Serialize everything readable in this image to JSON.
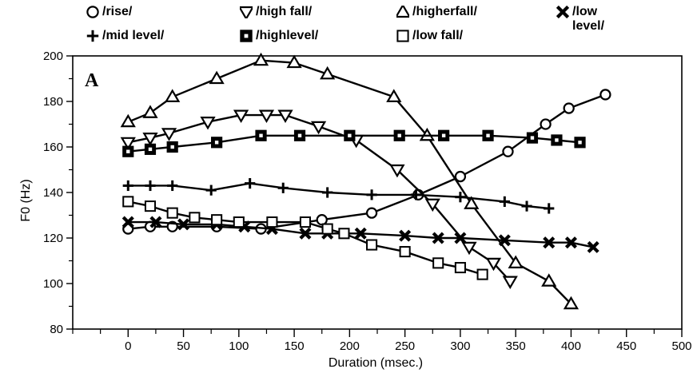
{
  "chart_data": {
    "type": "line",
    "panel_label": "A",
    "xlabel": "Duration (msec.)",
    "ylabel": "F0 (Hz)",
    "xlim": [
      -50,
      500
    ],
    "ylim": [
      80,
      200
    ],
    "x_ticks": [
      0,
      50,
      100,
      150,
      200,
      250,
      300,
      350,
      400,
      450,
      500
    ],
    "y_ticks": [
      80,
      100,
      120,
      140,
      160,
      180,
      200
    ],
    "grid": false,
    "legend_position": "top",
    "series": [
      {
        "name": "/rise/",
        "marker": "circle",
        "x": [
          0,
          20,
          40,
          80,
          120,
          175,
          220,
          262,
          300,
          343,
          377,
          398,
          431
        ],
        "y": [
          124,
          125,
          125,
          125,
          124,
          128,
          131,
          139,
          147,
          158,
          170,
          177,
          183
        ]
      },
      {
        "name": "/high fall/",
        "marker": "triangle-down",
        "x": [
          0,
          20,
          37,
          72,
          102,
          125,
          142,
          172,
          206,
          243,
          275,
          308,
          330,
          345
        ],
        "y": [
          162,
          164,
          166,
          171,
          174,
          174,
          174,
          169,
          163,
          150,
          135,
          116,
          109,
          101
        ]
      },
      {
        "name": "/higherfall/",
        "marker": "triangle-up",
        "x": [
          0,
          20,
          40,
          80,
          120,
          150,
          180,
          240,
          270,
          310,
          350,
          380,
          400
        ],
        "y": [
          171,
          175,
          182,
          190,
          198,
          197,
          192,
          182,
          165,
          135,
          109,
          101,
          91
        ]
      },
      {
        "name": "/low\nlevel/",
        "marker": "x-bold",
        "x": [
          0,
          25,
          50,
          80,
          105,
          130,
          160,
          180,
          210,
          250,
          280,
          300,
          340,
          380,
          400,
          420
        ],
        "y": [
          127,
          127,
          126,
          126,
          125,
          124,
          122,
          122,
          122,
          121,
          120,
          120,
          119,
          118,
          118,
          116
        ]
      },
      {
        "name": "/mid level/",
        "marker": "plus",
        "x": [
          0,
          20,
          40,
          75,
          110,
          140,
          180,
          220,
          260,
          300,
          340,
          360,
          380
        ],
        "y": [
          143,
          143,
          143,
          141,
          144,
          142,
          140,
          139,
          139,
          138,
          136,
          134,
          133
        ]
      },
      {
        "name": "/highlevel/",
        "marker": "square",
        "x": [
          0,
          20,
          40,
          80,
          120,
          155,
          200,
          245,
          285,
          325,
          365,
          387,
          408
        ],
        "y": [
          158,
          159,
          160,
          162,
          165,
          165,
          165,
          165,
          165,
          165,
          164,
          163,
          162
        ]
      },
      {
        "name": "/low fall/",
        "marker": "square-open",
        "x": [
          0,
          20,
          40,
          60,
          80,
          100,
          130,
          160,
          180,
          195,
          220,
          250,
          280,
          300,
          320
        ],
        "y": [
          136,
          134,
          131,
          129,
          128,
          127,
          127,
          127,
          124,
          122,
          117,
          114,
          109,
          107,
          104
        ]
      }
    ]
  }
}
